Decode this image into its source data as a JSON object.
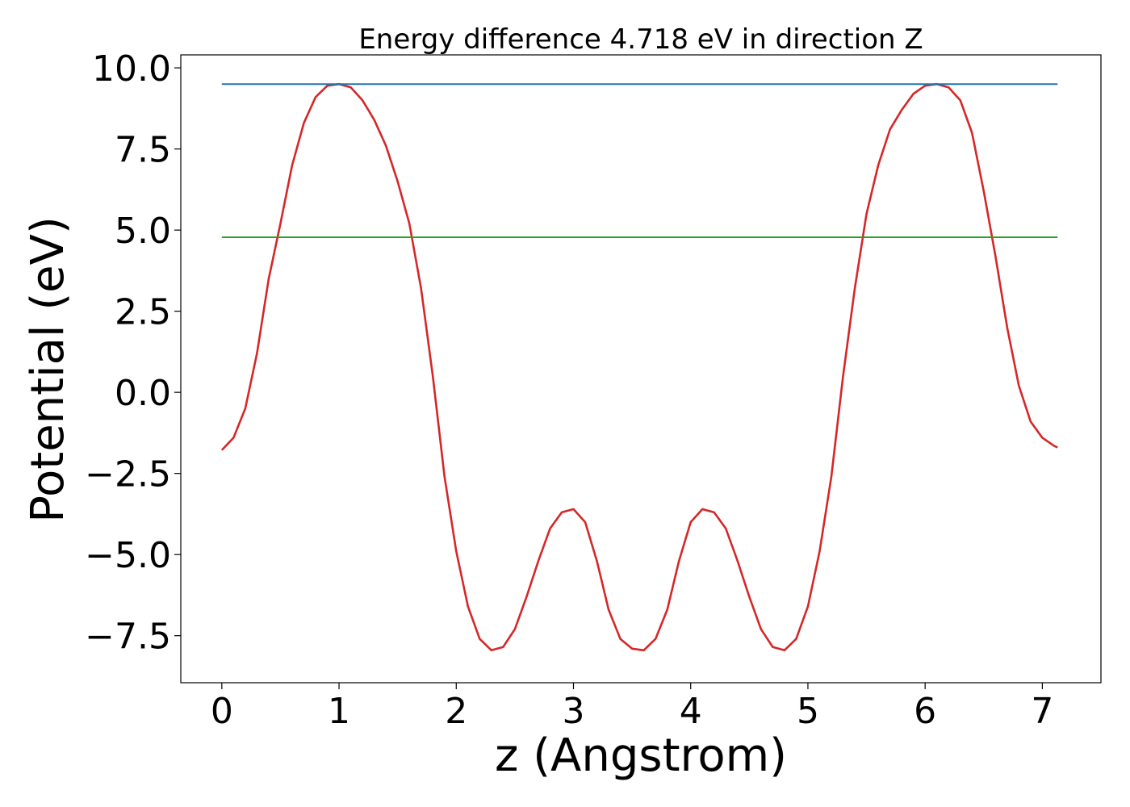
{
  "chart_data": {
    "type": "line",
    "title": "Energy difference 4.718 eV in direction Z",
    "xlabel": "z (Angstrom)",
    "ylabel": "Potential (eV)",
    "xlim": [
      -0.35,
      7.5
    ],
    "ylim": [
      -8.95,
      10.4
    ],
    "xticks": [
      0,
      1,
      2,
      3,
      4,
      5,
      6,
      7
    ],
    "xtick_labels": [
      "0",
      "1",
      "2",
      "3",
      "4",
      "5",
      "6",
      "7"
    ],
    "yticks": [
      10.0,
      7.5,
      5.0,
      2.5,
      0.0,
      -2.5,
      -5.0,
      -7.5
    ],
    "ytick_labels": [
      "10.0",
      "7.5",
      "5.0",
      "2.5",
      "0.0",
      "−2.5",
      "−5.0",
      "−7.5"
    ],
    "grid": false,
    "series": [
      {
        "color": "#d62728",
        "x": [
          0.0,
          0.1,
          0.2,
          0.3,
          0.4,
          0.5,
          0.6,
          0.7,
          0.8,
          0.9,
          1.0,
          1.1,
          1.2,
          1.3,
          1.4,
          1.5,
          1.6,
          1.7,
          1.8,
          1.9,
          2.0,
          2.1,
          2.2,
          2.3,
          2.4,
          2.5,
          2.6,
          2.7,
          2.8,
          2.9,
          3.0,
          3.1,
          3.2,
          3.3,
          3.4,
          3.5,
          3.6,
          3.7,
          3.8,
          3.9,
          4.0,
          4.1,
          4.2,
          4.3,
          4.4,
          4.5,
          4.6,
          4.7,
          4.8,
          4.9,
          5.0,
          5.1,
          5.2,
          5.3,
          5.4,
          5.5,
          5.6,
          5.7,
          5.8,
          5.9,
          6.0,
          6.1,
          6.2,
          6.3,
          6.4,
          6.5,
          6.6,
          6.7,
          6.8,
          6.9,
          7.0,
          7.1,
          7.13
        ],
        "y": [
          -1.78,
          -1.4,
          -0.5,
          1.2,
          3.5,
          5.2,
          7.0,
          8.3,
          9.1,
          9.45,
          9.5,
          9.4,
          9.0,
          8.4,
          7.6,
          6.5,
          5.2,
          3.2,
          0.5,
          -2.6,
          -4.9,
          -6.6,
          -7.6,
          -7.95,
          -7.85,
          -7.3,
          -6.3,
          -5.2,
          -4.2,
          -3.7,
          -3.6,
          -4.0,
          -5.2,
          -6.7,
          -7.6,
          -7.9,
          -7.95,
          -7.6,
          -6.7,
          -5.2,
          -4.0,
          -3.6,
          -3.7,
          -4.2,
          -5.2,
          -6.3,
          -7.3,
          -7.85,
          -7.95,
          -7.6,
          -6.6,
          -4.9,
          -2.6,
          0.5,
          3.2,
          5.5,
          7.0,
          8.1,
          8.7,
          9.2,
          9.45,
          9.5,
          9.4,
          9.0,
          8.0,
          6.2,
          4.2,
          2.0,
          0.2,
          -0.9,
          -1.4,
          -1.65,
          -1.7
        ]
      },
      {
        "color": "#1f77b4",
        "x": [
          0.0,
          7.13
        ],
        "y": [
          9.5,
          9.5
        ]
      },
      {
        "color": "#2ca02c",
        "x": [
          0.0,
          7.13
        ],
        "y": [
          4.78,
          4.78
        ]
      }
    ]
  }
}
